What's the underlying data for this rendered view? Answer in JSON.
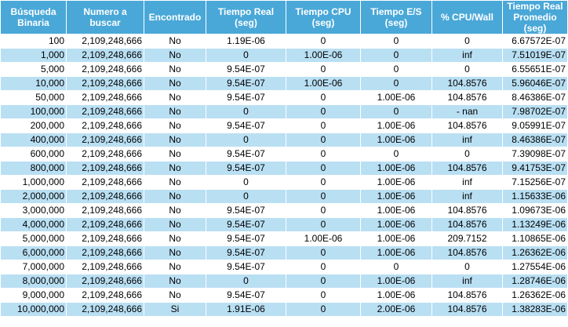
{
  "table": {
    "headers": [
      "Búsqueda Binaria",
      "Numero a buscar",
      "Encontrado",
      "Tiempo Real (seg)",
      "Tiempo CPU (seg)",
      "Tiempo E/S (seg)",
      "% CPU/Wall",
      "Tiempo Real Promedio (seg)"
    ],
    "rows": [
      [
        "100",
        "2,109,248,666",
        "No",
        "1.19E-06",
        "0",
        "0",
        "0",
        "6.67572E-07"
      ],
      [
        "1,000",
        "2,109,248,666",
        "No",
        "0",
        "1.00E-06",
        "0",
        "inf",
        "7.51019E-07"
      ],
      [
        "5,000",
        "2,109,248,666",
        "No",
        "9.54E-07",
        "0",
        "0",
        "0",
        "6.55651E-07"
      ],
      [
        "10,000",
        "2,109,248,666",
        "No",
        "9.54E-07",
        "1.00E-06",
        "0",
        "104.8576",
        "5.96046E-07"
      ],
      [
        "50,000",
        "2,109,248,666",
        "No",
        "9.54E-07",
        "0",
        "1.00E-06",
        "104.8576",
        "8.46386E-07"
      ],
      [
        "100,000",
        "2,109,248,666",
        "No",
        "0",
        "0",
        "0",
        "- nan",
        "7.98702E-07"
      ],
      [
        "200,000",
        "2,109,248,666",
        "No",
        "9.54E-07",
        "0",
        "1.00E-06",
        "104.8576",
        "9.05991E-07"
      ],
      [
        "400,000",
        "2,109,248,666",
        "No",
        "0",
        "0",
        "1.00E-06",
        "inf",
        "8.46386E-07"
      ],
      [
        "600,000",
        "2,109,248,666",
        "No",
        "9.54E-07",
        "0",
        "0",
        "0",
        "7.39098E-07"
      ],
      [
        "800,000",
        "2,109,248,666",
        "No",
        "9.54E-07",
        "0",
        "1.00E-06",
        "104.8576",
        "9.41753E-07"
      ],
      [
        "1,000,000",
        "2,109,248,666",
        "No",
        "0",
        "0",
        "1.00E-06",
        "inf",
        "7.15256E-07"
      ],
      [
        "2,000,000",
        "2,109,248,666",
        "No",
        "0",
        "0",
        "1.00E-06",
        "inf",
        "1.15633E-06"
      ],
      [
        "3,000,000",
        "2,109,248,666",
        "No",
        "9.54E-07",
        "0",
        "1.00E-06",
        "104.8576",
        "1.09673E-06"
      ],
      [
        "4,000,000",
        "2,109,248,666",
        "No",
        "9.54E-07",
        "0",
        "1.00E-06",
        "104.8576",
        "1.13249E-06"
      ],
      [
        "5,000,000",
        "2,109,248,666",
        "No",
        "9.54E-07",
        "1.00E-06",
        "1.00E-06",
        "209.7152",
        "1.10865E-06"
      ],
      [
        "6,000,000",
        "2,109,248,666",
        "No",
        "9.54E-07",
        "0",
        "1.00E-06",
        "104.8576",
        "1.26362E-06"
      ],
      [
        "7,000,000",
        "2,109,248,666",
        "No",
        "9.54E-07",
        "0",
        "0",
        "0",
        "1.27554E-06"
      ],
      [
        "8,000,000",
        "2,109,248,666",
        "No",
        "0",
        "0",
        "1.00E-06",
        "inf",
        "1.28746E-06"
      ],
      [
        "9,000,000",
        "2,109,248,666",
        "No",
        "9.54E-07",
        "0",
        "1.00E-06",
        "104.8576",
        "1.26362E-06"
      ],
      [
        "10,000,000",
        "2,109,248,666",
        "Si",
        "1.91E-06",
        "0",
        "2.00E-06",
        "104.8576",
        "1.38283E-06"
      ]
    ]
  },
  "colors": {
    "header_bg": "#4aa8d8",
    "header_text": "#ffffff",
    "row_alt_bg": "#b9dff3",
    "row_bg": "#ffffff"
  }
}
